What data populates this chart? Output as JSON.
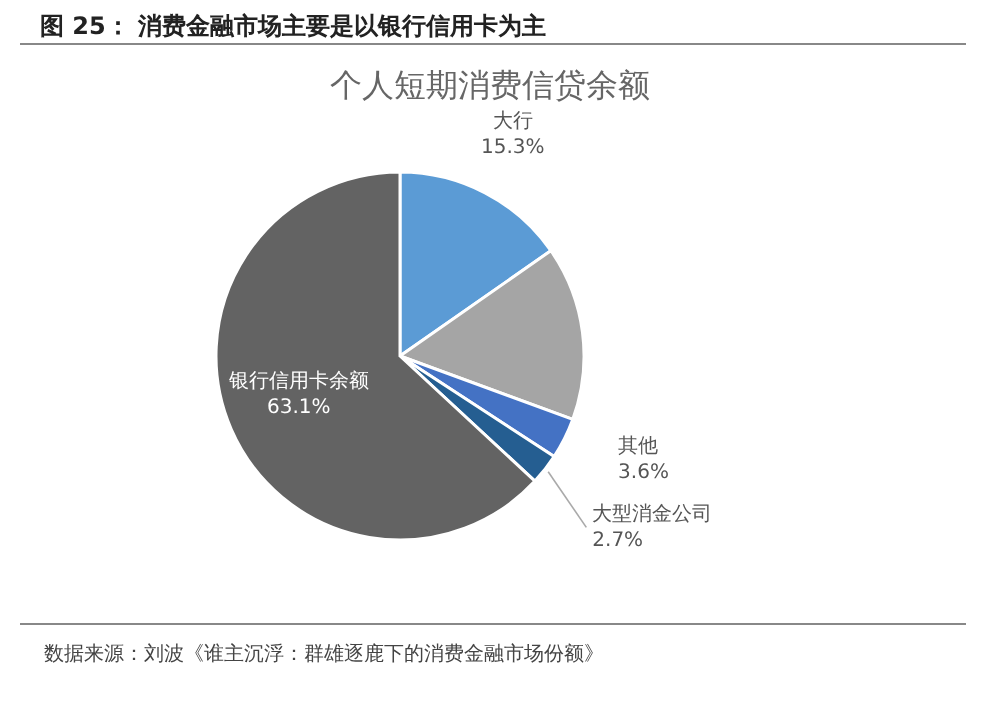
{
  "chart_data": {
    "type": "pie",
    "title": "图 25： 消费金融市场主要是以银行信用卡为主",
    "subtitle": "个人短期消费信贷余额",
    "categories": [
      "大行",
      null,
      "其他",
      "大型消金公司",
      "银行信用卡余额"
    ],
    "values": [
      15.3,
      15.3,
      3.6,
      2.7,
      63.1
    ],
    "value_labels": [
      "15.3%",
      null,
      "3.6%",
      "2.7%",
      "63.1%"
    ],
    "colors": [
      "#5b9bd5",
      "#a5a5a5",
      "#4472c4",
      "#255e91",
      "#636363"
    ],
    "annotations": [
      "数据来源：刘波《谁主沉浮：群雄逐鹿下的消费金融市场份额》"
    ]
  }
}
